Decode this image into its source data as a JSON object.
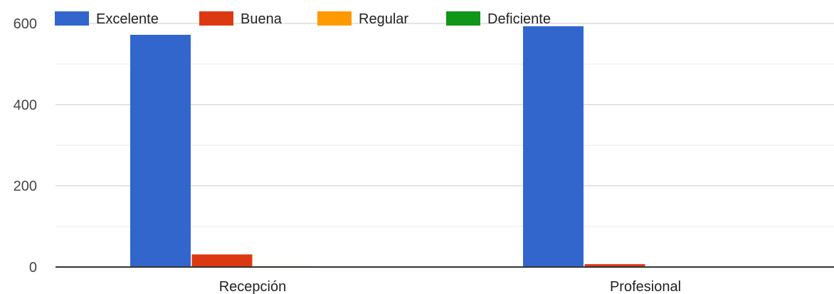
{
  "chart_data": {
    "type": "bar",
    "categories": [
      "Recepción",
      "Profesional"
    ],
    "series": [
      {
        "name": "Excelente",
        "values": [
          572,
          593
        ],
        "color": "#3366cc"
      },
      {
        "name": "Buena",
        "values": [
          31,
          7
        ],
        "color": "#dc3912"
      },
      {
        "name": "Regular",
        "values": [
          2,
          1
        ],
        "color": "#ff9900"
      },
      {
        "name": "Deficiente",
        "values": [
          1,
          1
        ],
        "color": "#109618"
      }
    ],
    "title": "",
    "xlabel": "",
    "ylabel": "",
    "ylim": [
      0,
      600
    ],
    "yticks": [
      "0",
      "200",
      "400",
      "600"
    ],
    "grid": true,
    "legend_position": "top"
  }
}
